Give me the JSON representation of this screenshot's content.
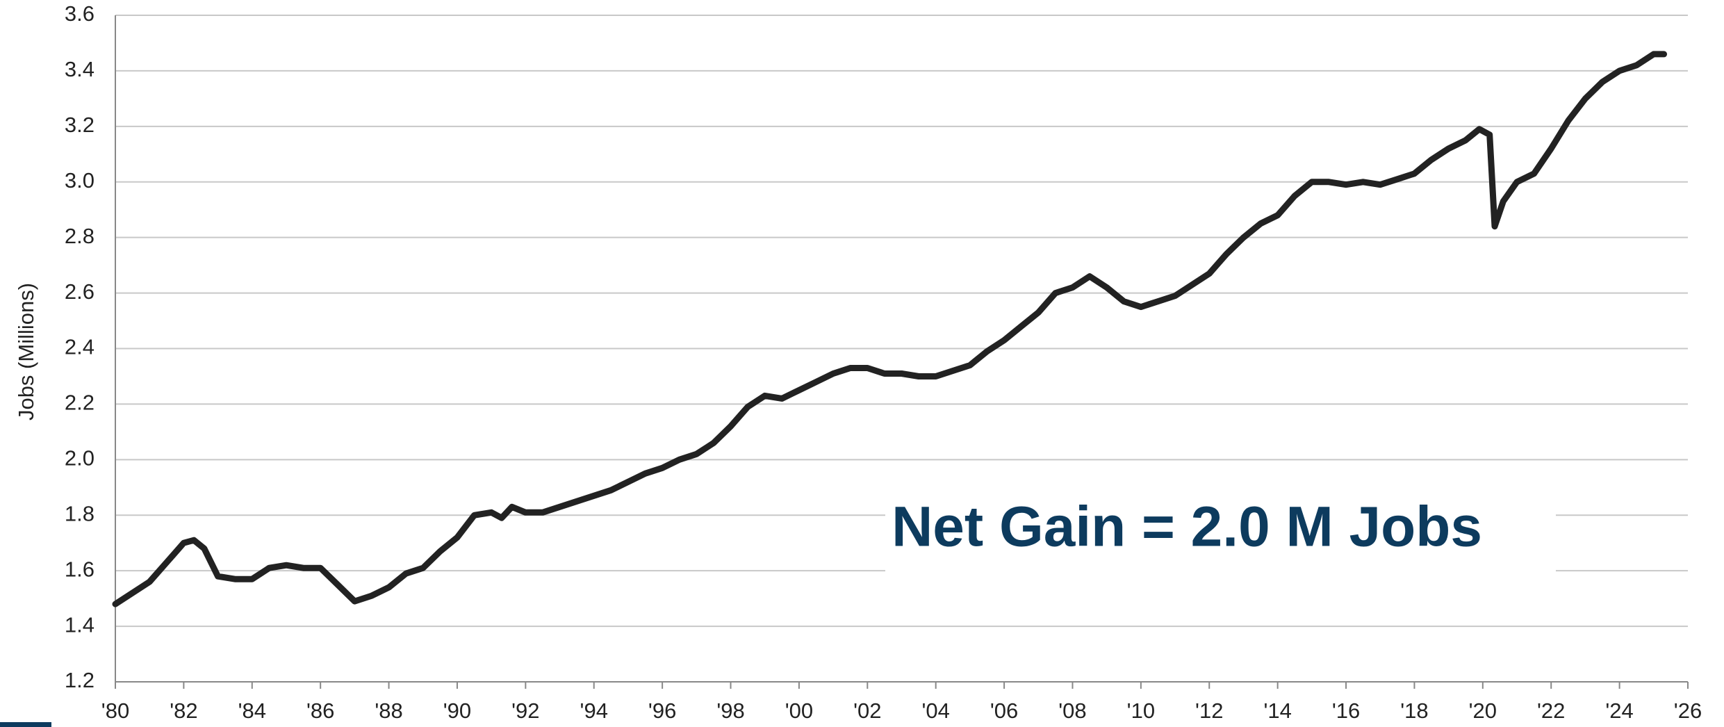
{
  "chart_data": {
    "type": "line",
    "y_label": "Jobs (Millions)",
    "annotation": "Net Gain = 2.0 M Jobs",
    "grid": true,
    "ylim": [
      1.2,
      3.6
    ],
    "yticks": [
      1.2,
      1.4,
      1.6,
      1.8,
      {
        "value": 2,
        "label": "2.0"
      },
      2.2,
      2.4,
      2.6,
      2.8,
      {
        "value": 3,
        "label": "3.0"
      },
      3.2,
      3.4,
      3.6
    ],
    "xlim": [
      1980,
      2026
    ],
    "xticks": [
      {
        "value": 1980,
        "label": "'80"
      },
      {
        "value": 1982,
        "label": "'82"
      },
      {
        "value": 1984,
        "label": "'84"
      },
      {
        "value": 1986,
        "label": "'86"
      },
      {
        "value": 1988,
        "label": "'88"
      },
      {
        "value": 1990,
        "label": "'90"
      },
      {
        "value": 1992,
        "label": "'92"
      },
      {
        "value": 1994,
        "label": "'94"
      },
      {
        "value": 1996,
        "label": "'96"
      },
      {
        "value": 1998,
        "label": "'98"
      },
      {
        "value": 2000,
        "label": "'00"
      },
      {
        "value": 2002,
        "label": "'02"
      },
      {
        "value": 2004,
        "label": "'04"
      },
      {
        "value": 2006,
        "label": "'06"
      },
      {
        "value": 2008,
        "label": "'08"
      },
      {
        "value": 2010,
        "label": "'10"
      },
      {
        "value": 2012,
        "label": "'12"
      },
      {
        "value": 2014,
        "label": "'14"
      },
      {
        "value": 2016,
        "label": "'16"
      },
      {
        "value": 2018,
        "label": "'18"
      },
      {
        "value": 2020,
        "label": "'20"
      },
      {
        "value": 2022,
        "label": "'22"
      },
      {
        "value": 2024,
        "label": "'24"
      },
      {
        "value": 2026,
        "label": "'26"
      }
    ],
    "series": [
      {
        "color": "#222222",
        "x": [
          1980,
          1980.5,
          1981,
          1981.5,
          1982,
          1982.3,
          1982.6,
          1983,
          1983.5,
          1984,
          1984.5,
          1985,
          1985.5,
          1986,
          1986.5,
          1987,
          1987.5,
          1988,
          1988.5,
          1989,
          1989.5,
          1990,
          1990.5,
          1991,
          1991.3,
          1991.6,
          1992,
          1992.5,
          1993,
          1993.5,
          1994,
          1994.5,
          1995,
          1995.5,
          1996,
          1996.5,
          1997,
          1997.5,
          1998,
          1998.5,
          1999,
          1999.5,
          2000,
          2000.5,
          2001,
          2001.5,
          2002,
          2002.5,
          2003,
          2003.5,
          2004,
          2004.5,
          2005,
          2005.5,
          2006,
          2006.5,
          2007,
          2007.5,
          2008,
          2008.5,
          2009,
          2009.5,
          2010,
          2010.5,
          2011,
          2011.5,
          2012,
          2012.5,
          2013,
          2013.5,
          2014,
          2014.5,
          2015,
          2015.5,
          2016,
          2016.5,
          2017,
          2017.5,
          2018,
          2018.5,
          2019,
          2019.5,
          2019.9,
          2020.2,
          2020.35,
          2020.6,
          2021,
          2021.5,
          2022,
          2022.5,
          2023,
          2023.5,
          2024,
          2024.5,
          2025,
          2025.3
        ],
        "values": [
          1.48,
          1.52,
          1.56,
          1.63,
          1.7,
          1.71,
          1.68,
          1.58,
          1.57,
          1.57,
          1.61,
          1.62,
          1.61,
          1.61,
          1.55,
          1.49,
          1.51,
          1.54,
          1.59,
          1.61,
          1.67,
          1.72,
          1.8,
          1.81,
          1.79,
          1.83,
          1.81,
          1.81,
          1.83,
          1.85,
          1.87,
          1.89,
          1.92,
          1.95,
          1.97,
          2.0,
          2.02,
          2.06,
          2.12,
          2.19,
          2.23,
          2.22,
          2.25,
          2.28,
          2.31,
          2.33,
          2.33,
          2.31,
          2.31,
          2.3,
          2.3,
          2.32,
          2.34,
          2.39,
          2.43,
          2.48,
          2.53,
          2.6,
          2.62,
          2.66,
          2.62,
          2.57,
          2.55,
          2.57,
          2.59,
          2.63,
          2.67,
          2.74,
          2.8,
          2.85,
          2.88,
          2.95,
          3.0,
          3.0,
          2.99,
          3.0,
          2.99,
          3.01,
          3.03,
          3.08,
          3.12,
          3.15,
          3.19,
          3.17,
          2.84,
          2.93,
          3.0,
          3.03,
          3.12,
          3.22,
          3.3,
          3.36,
          3.4,
          3.42,
          3.46,
          3.46
        ]
      }
    ]
  }
}
